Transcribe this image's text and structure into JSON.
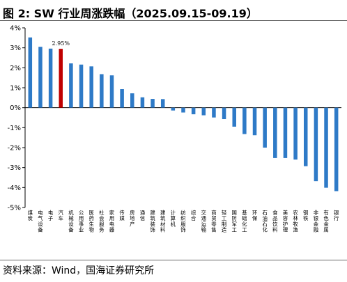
{
  "figure_title": "图 2:  SW 行业周涨跌幅（2025.09.15-09.19）",
  "source": "资料来源：Wind，国海证券研究所",
  "colors": {
    "bar": "#2e7ac7",
    "highlight": "#c00000",
    "axis": "#000000"
  },
  "chart_data": {
    "type": "bar",
    "title": "",
    "xlabel": "",
    "ylabel": "",
    "ylim": [
      -5,
      4
    ],
    "yticks": [
      4,
      3,
      2,
      1,
      0,
      -1,
      -2,
      -3,
      -4,
      -5
    ],
    "ytick_labels": [
      "4%",
      "3%",
      "2%",
      "1%",
      "0%",
      "-1%",
      "-2%",
      "-3%",
      "-4%",
      "-5%"
    ],
    "grid": false,
    "categories": [
      "煤炭",
      "电气设备",
      "电子",
      "汽车",
      "机械设备",
      "公用事业",
      "医药生物",
      "社会服务",
      "家用电器",
      "传媒",
      "房地产",
      "通信",
      "建筑装饰",
      "建筑材料",
      "计算机",
      "纺织服饰",
      "综合",
      "交通运输",
      "商贸零售",
      "轻工制造",
      "国防军工",
      "基础化工",
      "环保",
      "石油石化",
      "食品饮料",
      "美容护理",
      "农林牧渔",
      "钢铁",
      "非银金融",
      "有色金属",
      "银行"
    ],
    "values": [
      3.52,
      3.05,
      2.96,
      2.95,
      2.22,
      2.16,
      2.07,
      1.68,
      1.62,
      0.93,
      0.72,
      0.52,
      0.44,
      0.43,
      -0.14,
      -0.24,
      -0.33,
      -0.38,
      -0.49,
      -0.57,
      -0.95,
      -1.32,
      -1.38,
      -2.0,
      -2.52,
      -2.52,
      -2.6,
      -2.93,
      -3.68,
      -4.01,
      -4.18
    ],
    "highlight_index": 3,
    "annotations": [
      {
        "index": 3,
        "text": "2.95%"
      }
    ]
  }
}
